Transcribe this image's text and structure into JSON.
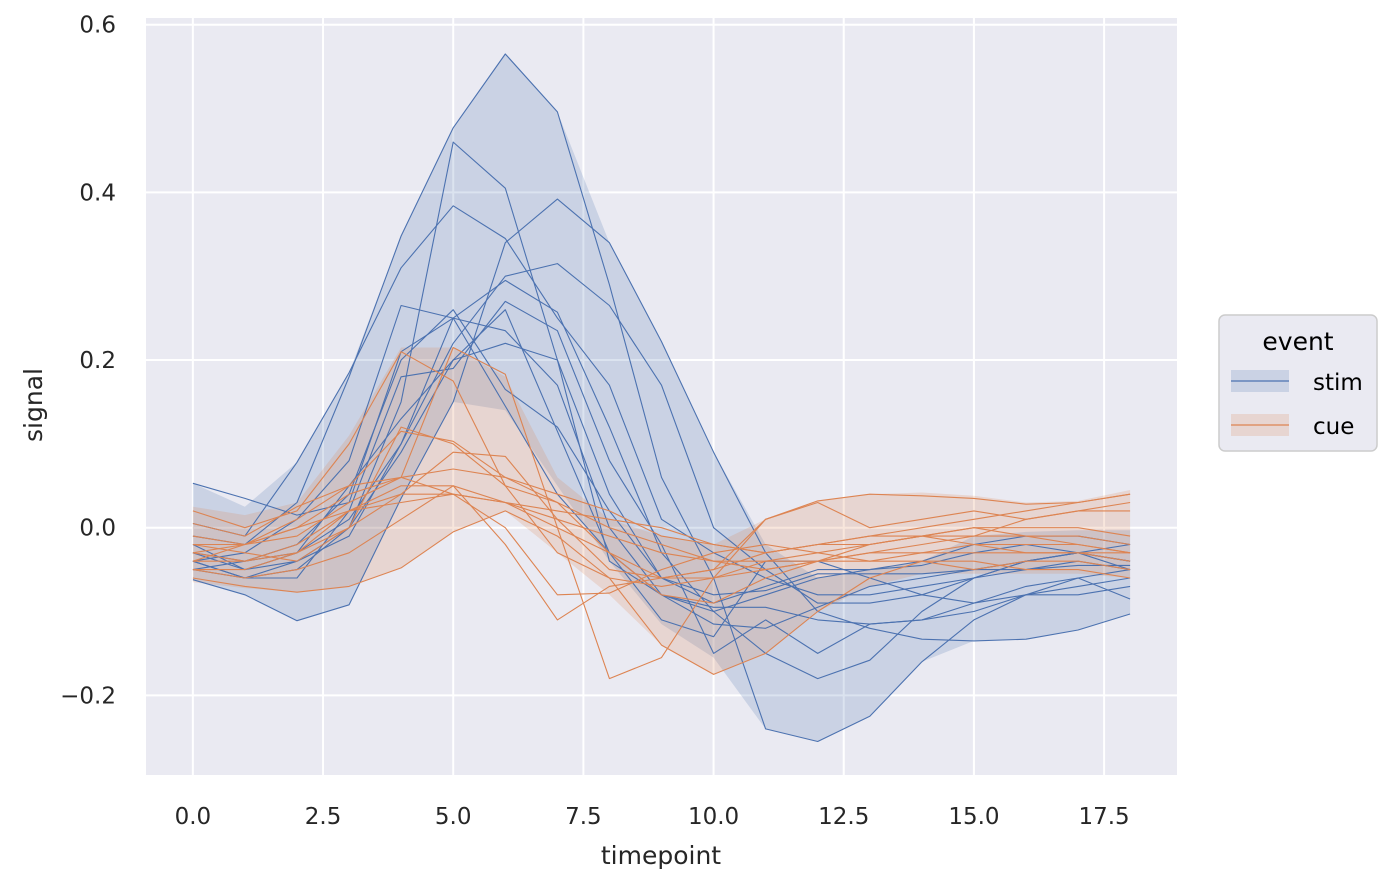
{
  "chart_data": {
    "type": "line",
    "xlabel": "timepoint",
    "ylabel": "signal",
    "xlim": [
      -0.9,
      18.9
    ],
    "ylim": [
      -0.295,
      0.608
    ],
    "xticks": [
      0,
      2.5,
      5,
      7.5,
      10,
      12.5,
      15,
      17.5
    ],
    "xtick_labels": [
      "0.0",
      "2.5",
      "5.0",
      "7.5",
      "10.0",
      "12.5",
      "15.0",
      "17.5"
    ],
    "yticks": [
      -0.2,
      0,
      0.2,
      0.4,
      0.6
    ],
    "ytick_labels": [
      "−0.2",
      "0.0",
      "0.2",
      "0.4",
      "0.6"
    ],
    "grid": true,
    "legend_position": "right",
    "legend": {
      "title": "event",
      "entries": [
        {
          "label": "stim",
          "color": "#4c72b0"
        },
        {
          "label": "cue",
          "color": "#dd8452"
        }
      ]
    },
    "x": [
      0,
      1,
      2,
      3,
      4,
      5,
      6,
      7,
      8,
      9,
      10,
      11,
      12,
      13,
      14,
      15,
      16,
      17,
      18
    ],
    "groups": [
      {
        "name": "stim",
        "color": "#4c72b0",
        "band_upper": [
          0.053,
          0.025,
          0.078,
          0.185,
          0.348,
          0.477,
          0.565,
          0.496,
          0.34,
          0.222,
          0.09,
          -0.02,
          -0.06,
          -0.05,
          -0.04,
          -0.01,
          -0.005,
          -0.003,
          -0.003
        ],
        "band_lower": [
          -0.062,
          -0.08,
          -0.111,
          -0.092,
          0.035,
          0.15,
          0.14,
          0.05,
          -0.04,
          -0.115,
          -0.155,
          -0.24,
          -0.255,
          -0.225,
          -0.16,
          -0.135,
          -0.133,
          -0.122,
          -0.103
        ],
        "lines": [
          [
            0.053,
            0.035,
            0.015,
            0.03,
            0.21,
            0.25,
            0.235,
            0.17,
            0.0,
            -0.08,
            -0.1,
            -0.08,
            -0.06,
            -0.05,
            -0.045,
            -0.03,
            -0.02,
            -0.03,
            -0.04
          ],
          [
            -0.03,
            -0.04,
            -0.02,
            0.04,
            0.2,
            0.26,
            0.165,
            0.12,
            0.02,
            -0.06,
            -0.09,
            -0.07,
            -0.05,
            -0.05,
            -0.04,
            -0.02,
            -0.01,
            -0.01,
            -0.02
          ],
          [
            -0.04,
            -0.03,
            0.01,
            0.08,
            0.265,
            0.25,
            0.145,
            0.04,
            -0.03,
            -0.08,
            -0.115,
            -0.12,
            -0.095,
            -0.07,
            -0.06,
            -0.05,
            -0.04,
            -0.03,
            -0.04
          ],
          [
            -0.01,
            -0.02,
            0.03,
            0.18,
            0.348,
            0.477,
            0.565,
            0.496,
            0.29,
            0.06,
            -0.06,
            -0.24,
            -0.255,
            -0.225,
            -0.16,
            -0.11,
            -0.08,
            -0.08,
            -0.07
          ],
          [
            -0.04,
            -0.06,
            -0.05,
            0.0,
            0.15,
            0.46,
            0.405,
            0.2,
            -0.04,
            -0.08,
            -0.095,
            -0.095,
            -0.11,
            -0.115,
            -0.11,
            -0.1,
            -0.08,
            -0.06,
            -0.05
          ],
          [
            0.005,
            -0.01,
            0.078,
            0.185,
            0.31,
            0.384,
            0.345,
            0.25,
            0.17,
            0.01,
            -0.03,
            -0.06,
            -0.08,
            -0.08,
            -0.07,
            -0.06,
            -0.05,
            -0.04,
            -0.05
          ],
          [
            -0.05,
            -0.06,
            -0.04,
            -0.01,
            0.1,
            0.25,
            0.295,
            0.257,
            0.12,
            -0.03,
            -0.1,
            -0.15,
            -0.18,
            -0.158,
            -0.1,
            -0.06,
            -0.04,
            -0.03,
            -0.02
          ],
          [
            -0.062,
            -0.08,
            -0.111,
            -0.092,
            0.035,
            0.15,
            0.34,
            0.392,
            0.34,
            0.222,
            0.09,
            -0.03,
            -0.1,
            -0.12,
            -0.133,
            -0.135,
            -0.133,
            -0.122,
            -0.103
          ],
          [
            -0.02,
            -0.05,
            -0.03,
            0.01,
            0.1,
            0.22,
            0.3,
            0.315,
            0.265,
            0.17,
            0.0,
            -0.05,
            -0.09,
            -0.09,
            -0.08,
            -0.06,
            -0.04,
            -0.03,
            -0.05
          ],
          [
            -0.04,
            -0.06,
            -0.06,
            0.02,
            0.18,
            0.19,
            0.27,
            0.235,
            0.08,
            -0.02,
            -0.15,
            -0.11,
            -0.15,
            -0.115,
            -0.11,
            -0.09,
            -0.07,
            -0.06,
            -0.085
          ],
          [
            -0.05,
            -0.04,
            -0.03,
            0.05,
            0.13,
            0.2,
            0.26,
            0.115,
            -0.03,
            -0.11,
            -0.13,
            -0.04,
            -0.04,
            -0.06,
            -0.08,
            -0.09,
            -0.08,
            -0.07,
            -0.06
          ],
          [
            -0.03,
            -0.05,
            -0.04,
            0.0,
            0.09,
            0.2,
            0.22,
            0.2,
            0.04,
            -0.06,
            -0.08,
            -0.075,
            -0.055,
            -0.055,
            -0.055,
            -0.05,
            -0.05,
            -0.045,
            -0.045
          ]
        ]
      },
      {
        "name": "cue",
        "color": "#dd8452",
        "band_upper": [
          0.025,
          0.015,
          0.03,
          0.11,
          0.215,
          0.215,
          0.18,
          0.06,
          0.01,
          -0.01,
          -0.02,
          0.01,
          0.032,
          0.04,
          0.042,
          0.038,
          0.03,
          0.032,
          0.045
        ],
        "band_lower": [
          -0.065,
          -0.072,
          -0.077,
          -0.07,
          -0.048,
          -0.005,
          0.02,
          -0.03,
          -0.08,
          -0.14,
          -0.175,
          -0.15,
          -0.1,
          -0.07,
          -0.055,
          -0.055,
          -0.055,
          -0.055,
          -0.06
        ],
        "lines": [
          [
            0.02,
            0.0,
            0.02,
            0.1,
            0.21,
            0.175,
            0.05,
            -0.03,
            -0.06,
            -0.07,
            -0.06,
            -0.04,
            -0.03,
            -0.02,
            -0.01,
            0.0,
            -0.01,
            -0.02,
            -0.03
          ],
          [
            0.005,
            -0.01,
            0.025,
            0.05,
            0.06,
            0.215,
            0.183,
            0.0,
            -0.18,
            -0.155,
            -0.06,
            0.01,
            0.032,
            0.04,
            0.038,
            0.035,
            0.028,
            0.03,
            0.04
          ],
          [
            -0.02,
            -0.03,
            -0.04,
            0.0,
            0.12,
            0.1,
            0.05,
            0.03,
            -0.03,
            -0.08,
            -0.09,
            -0.06,
            -0.04,
            -0.02,
            -0.01,
            0.0,
            0.0,
            0.0,
            -0.01
          ],
          [
            -0.03,
            -0.02,
            0.0,
            0.04,
            0.06,
            0.04,
            0.03,
            0.01,
            -0.01,
            -0.03,
            -0.04,
            -0.04,
            -0.04,
            -0.03,
            -0.02,
            -0.01,
            0.01,
            0.02,
            0.02
          ],
          [
            -0.04,
            -0.04,
            -0.02,
            0.02,
            0.05,
            0.05,
            0.03,
            0.0,
            -0.03,
            -0.06,
            -0.06,
            -0.05,
            -0.04,
            -0.03,
            -0.03,
            -0.02,
            -0.02,
            -0.02,
            -0.03
          ],
          [
            -0.02,
            -0.02,
            -0.01,
            0.03,
            0.06,
            0.07,
            0.06,
            0.03,
            0.0,
            -0.02,
            -0.04,
            -0.05,
            -0.04,
            -0.04,
            -0.03,
            -0.03,
            -0.03,
            -0.03,
            -0.04
          ],
          [
            -0.06,
            -0.07,
            -0.077,
            -0.07,
            -0.048,
            -0.005,
            0.02,
            -0.01,
            -0.06,
            -0.14,
            -0.175,
            -0.15,
            -0.1,
            -0.06,
            -0.04,
            -0.04,
            -0.05,
            -0.05,
            -0.06
          ],
          [
            -0.03,
            -0.04,
            -0.03,
            0.0,
            0.04,
            0.09,
            0.085,
            0.01,
            -0.05,
            -0.06,
            -0.05,
            0.01,
            0.03,
            0.0,
            0.01,
            0.02,
            0.01,
            0.02,
            0.03
          ],
          [
            -0.01,
            -0.02,
            0.0,
            0.02,
            0.04,
            0.04,
            0.03,
            0.02,
            0.01,
            0.0,
            -0.02,
            -0.03,
            -0.02,
            -0.01,
            -0.01,
            -0.01,
            -0.01,
            -0.01,
            -0.02
          ],
          [
            -0.05,
            -0.05,
            -0.03,
            0.02,
            0.03,
            0.04,
            0.0,
            -0.08,
            -0.078,
            -0.05,
            -0.03,
            -0.02,
            -0.03,
            -0.04,
            -0.04,
            -0.05,
            -0.04,
            -0.04,
            -0.05
          ],
          [
            -0.04,
            -0.02,
            0.01,
            0.05,
            0.115,
            0.103,
            0.06,
            0.04,
            0.02,
            -0.01,
            -0.02,
            -0.03,
            -0.02,
            -0.01,
            0.0,
            0.01,
            0.02,
            0.03,
            0.04
          ],
          [
            -0.05,
            -0.06,
            -0.05,
            -0.03,
            0.01,
            0.05,
            -0.02,
            -0.11,
            -0.07,
            -0.06,
            -0.05,
            -0.03,
            -0.02,
            -0.02,
            -0.01,
            -0.02,
            -0.03,
            -0.03,
            -0.03
          ]
        ]
      }
    ]
  }
}
